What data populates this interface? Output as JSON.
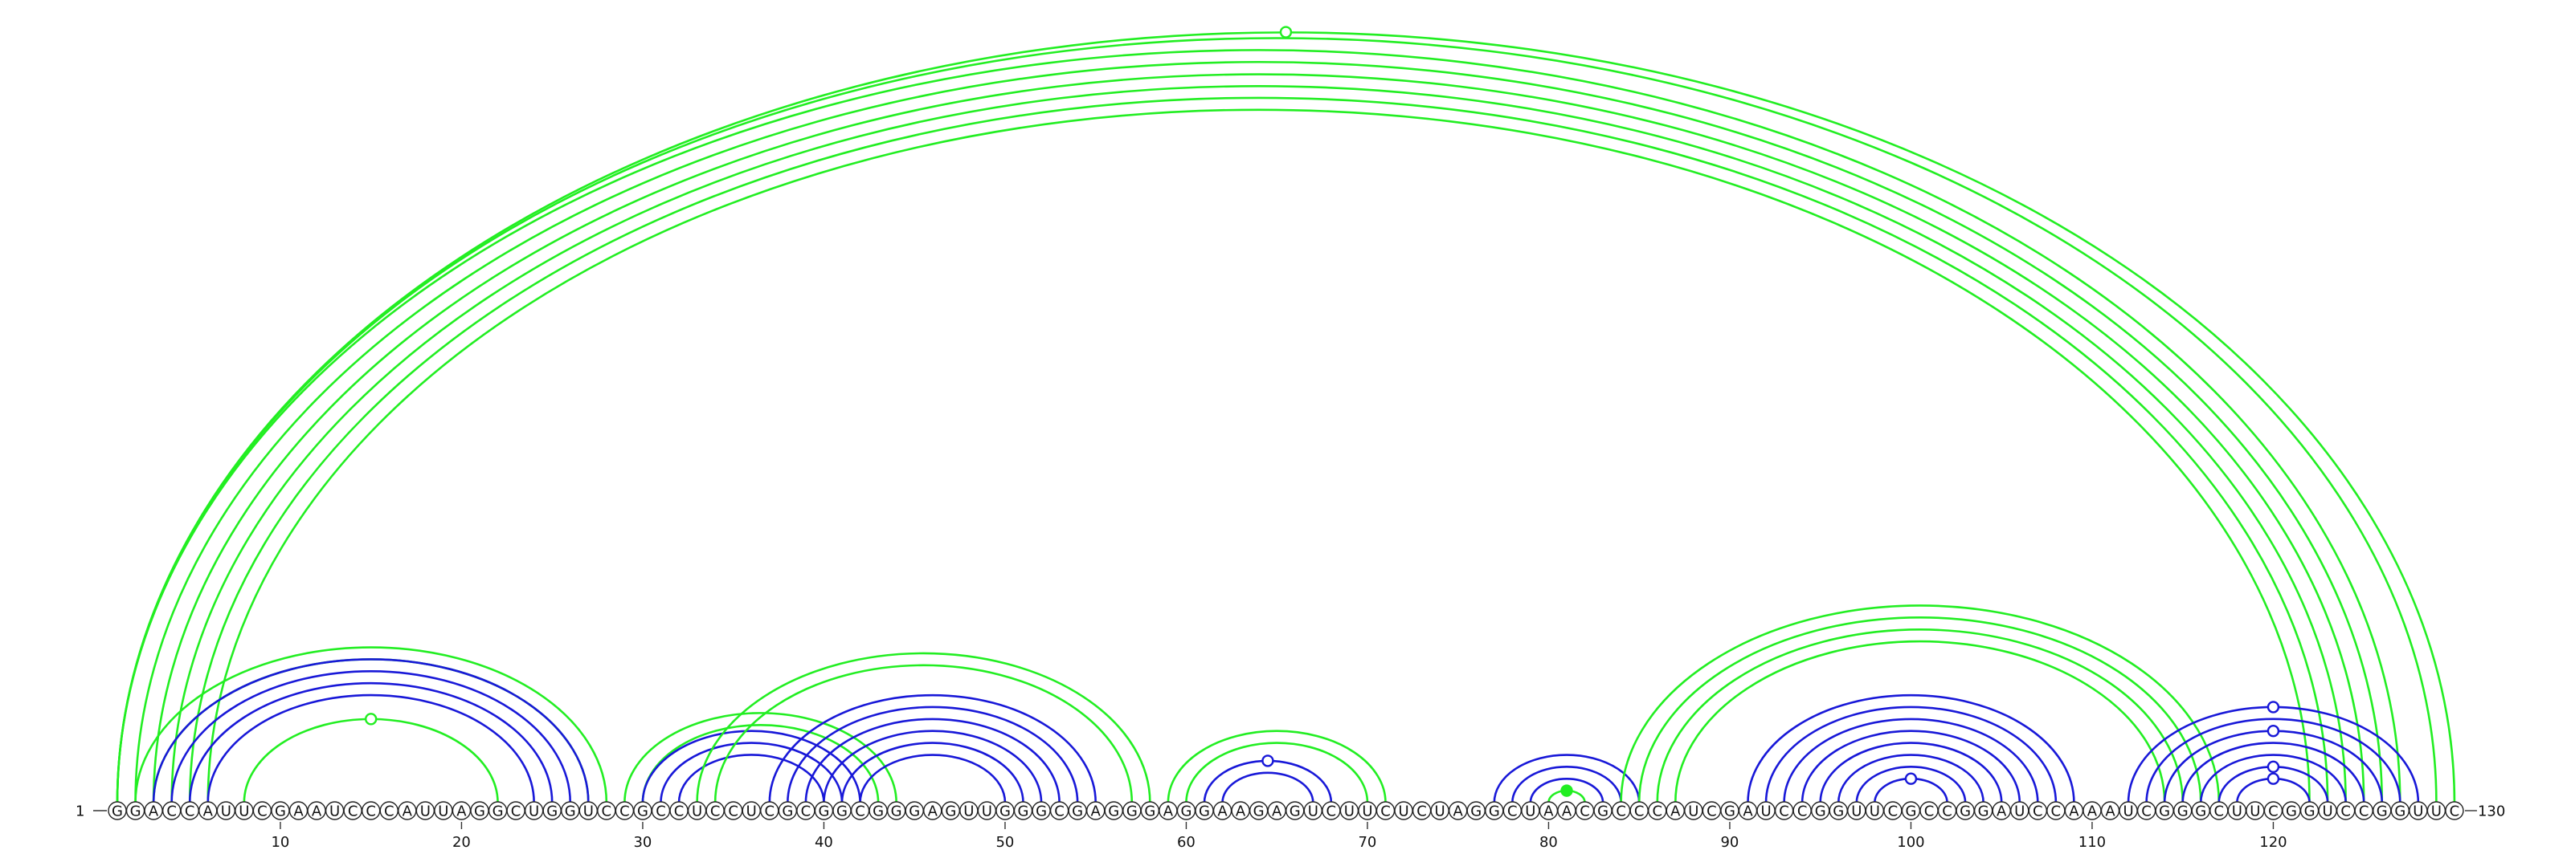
{
  "diagram": {
    "sequence": "GGACCAUUCGAAUCCCAUUAGGCUGGUCCGCCUCCUCGCGGCGGGAGUUGGGCGAGGGAGGAAGAGUCUUCUCUAGGCUAACGCCCAUCGAUCCGGUUCGCCGGAUCCAAAUCGGGCUUCGGUCCGGUUC",
    "start_label": "1",
    "end_label": "130",
    "ticks": [
      "10",
      "20",
      "30",
      "40",
      "50",
      "60",
      "70",
      "80",
      "90",
      "100",
      "110",
      "120"
    ],
    "colors": {
      "green": "#22ee22",
      "blue": "#1818d8"
    },
    "arcs": [
      {
        "i": 1,
        "j": 127,
        "color": "green"
      },
      {
        "i": 2,
        "j": 126,
        "color": "green"
      },
      {
        "i": 3,
        "j": 125,
        "color": "green"
      },
      {
        "i": 4,
        "j": 124,
        "color": "green"
      },
      {
        "i": 5,
        "j": 123,
        "color": "green"
      },
      {
        "i": 6,
        "j": 122,
        "color": "green"
      },
      {
        "i": 1,
        "j": 129,
        "color": "green"
      },
      {
        "i": 1,
        "j": 130,
        "color": "green"
      },
      {
        "i": 2,
        "j": 28,
        "color": "green"
      },
      {
        "i": 3,
        "j": 27,
        "color": "green"
      },
      {
        "i": 3,
        "j": 27,
        "color": "blue"
      },
      {
        "i": 4,
        "j": 26,
        "color": "blue"
      },
      {
        "i": 5,
        "j": 25,
        "color": "blue"
      },
      {
        "i": 6,
        "j": 24,
        "color": "blue"
      },
      {
        "i": 8,
        "j": 22,
        "color": "green"
      },
      {
        "i": 29,
        "j": 44,
        "color": "green"
      },
      {
        "i": 30,
        "j": 43,
        "color": "green"
      },
      {
        "i": 30,
        "j": 42,
        "color": "blue"
      },
      {
        "i": 31,
        "j": 41,
        "color": "blue"
      },
      {
        "i": 32,
        "j": 40,
        "color": "blue"
      },
      {
        "i": 33,
        "j": 58,
        "color": "green"
      },
      {
        "i": 34,
        "j": 57,
        "color": "green"
      },
      {
        "i": 37,
        "j": 55,
        "color": "blue"
      },
      {
        "i": 38,
        "j": 54,
        "color": "blue"
      },
      {
        "i": 39,
        "j": 53,
        "color": "blue"
      },
      {
        "i": 40,
        "j": 52,
        "color": "blue"
      },
      {
        "i": 41,
        "j": 51,
        "color": "blue"
      },
      {
        "i": 42,
        "j": 50,
        "color": "blue"
      },
      {
        "i": 59,
        "j": 71,
        "color": "green"
      },
      {
        "i": 60,
        "j": 70,
        "color": "green"
      },
      {
        "i": 61,
        "j": 68,
        "color": "blue"
      },
      {
        "i": 62,
        "j": 67,
        "color": "blue"
      },
      {
        "i": 77,
        "j": 85,
        "color": "blue"
      },
      {
        "i": 78,
        "j": 84,
        "color": "blue"
      },
      {
        "i": 79,
        "j": 83,
        "color": "blue"
      },
      {
        "i": 80,
        "j": 82,
        "color": "green"
      },
      {
        "i": 84,
        "j": 117,
        "color": "green"
      },
      {
        "i": 85,
        "j": 116,
        "color": "green"
      },
      {
        "i": 86,
        "j": 115,
        "color": "green"
      },
      {
        "i": 87,
        "j": 114,
        "color": "green"
      },
      {
        "i": 91,
        "j": 109,
        "color": "blue"
      },
      {
        "i": 92,
        "j": 108,
        "color": "blue"
      },
      {
        "i": 93,
        "j": 107,
        "color": "blue"
      },
      {
        "i": 94,
        "j": 106,
        "color": "blue"
      },
      {
        "i": 95,
        "j": 105,
        "color": "blue"
      },
      {
        "i": 96,
        "j": 104,
        "color": "blue"
      },
      {
        "i": 97,
        "j": 103,
        "color": "blue"
      },
      {
        "i": 98,
        "j": 102,
        "color": "blue"
      },
      {
        "i": 112,
        "j": 128,
        "color": "blue"
      },
      {
        "i": 113,
        "j": 127,
        "color": "blue"
      },
      {
        "i": 114,
        "j": 126,
        "color": "blue"
      },
      {
        "i": 115,
        "j": 125,
        "color": "blue"
      },
      {
        "i": 116,
        "j": 124,
        "color": "blue"
      },
      {
        "i": 117,
        "j": 123,
        "color": "blue"
      },
      {
        "i": 118,
        "j": 122,
        "color": "blue"
      }
    ],
    "markers": [
      {
        "pos": 65.5,
        "height_ratio": 1.0,
        "ref": [
          1,
          130
        ],
        "color": "green",
        "filled": false
      },
      {
        "pos": 15,
        "height_ratio": 1.0,
        "ref": [
          8,
          22
        ],
        "color": "green",
        "filled": false
      },
      {
        "pos": 64.5,
        "height_ratio": 1.0,
        "ref": [
          61,
          68
        ],
        "color": "blue",
        "filled": false
      },
      {
        "pos": 81,
        "height_ratio": 1.0,
        "ref": [
          80,
          82
        ],
        "color": "green",
        "filled": true
      },
      {
        "pos": 100,
        "height_ratio": 1.0,
        "ref": [
          98,
          102
        ],
        "color": "blue",
        "filled": false
      },
      {
        "pos": 120,
        "height_ratio": 1.0,
        "ref": [
          112,
          128
        ],
        "color": "blue",
        "filled": false
      },
      {
        "pos": 120,
        "height_ratio": 1.0,
        "ref": [
          114,
          126
        ],
        "color": "blue",
        "filled": false
      },
      {
        "pos": 120,
        "height_ratio": 1.0,
        "ref": [
          117,
          123
        ],
        "color": "blue",
        "filled": false
      },
      {
        "pos": 120,
        "height_ratio": 1.0,
        "ref": [
          118,
          122
        ],
        "color": "blue",
        "filled": false
      }
    ]
  }
}
